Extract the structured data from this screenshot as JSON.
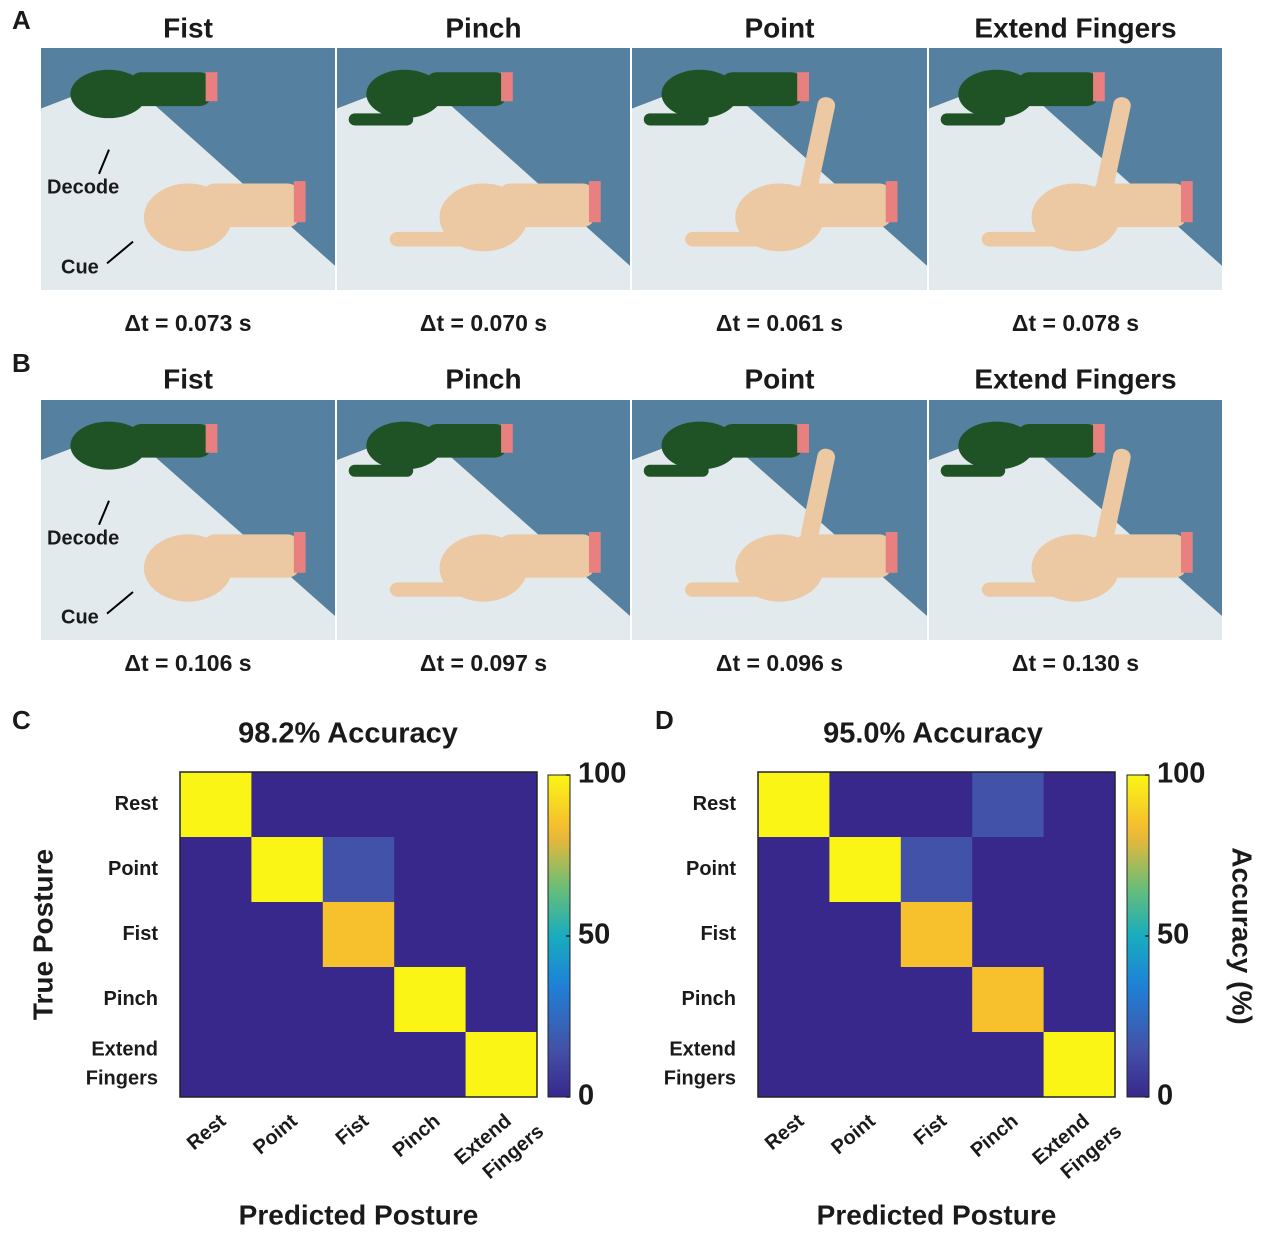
{
  "panels": [
    {
      "label": "A",
      "annotations": {
        "decode": "Decode",
        "cue": "Cue"
      },
      "items": [
        {
          "title": "Fist",
          "delta": "Δt = 0.073 s"
        },
        {
          "title": "Pinch",
          "delta": "Δt = 0.070 s"
        },
        {
          "title": "Point",
          "delta": "Δt = 0.061 s"
        },
        {
          "title": "Extend Fingers",
          "delta": "Δt = 0.078 s"
        }
      ]
    },
    {
      "label": "B",
      "annotations": {
        "decode": "Decode",
        "cue": "Cue"
      },
      "items": [
        {
          "title": "Fist",
          "delta": "Δt = 0.106 s"
        },
        {
          "title": "Pinch",
          "delta": "Δt = 0.097 s"
        },
        {
          "title": "Point",
          "delta": "Δt = 0.096 s"
        },
        {
          "title": "Extend Fingers",
          "delta": "Δt = 0.130 s"
        }
      ]
    }
  ],
  "chart_data": [
    {
      "type": "heatmap",
      "label": "C",
      "title": "98.2% Accuracy",
      "categories": [
        "Rest",
        "Point",
        "Fist",
        "Pinch",
        "Extend Fingers"
      ],
      "values": [
        [
          100,
          0,
          0,
          0,
          0
        ],
        [
          0,
          100,
          15,
          0,
          0
        ],
        [
          0,
          0,
          85,
          0,
          0
        ],
        [
          0,
          0,
          0,
          100,
          0
        ],
        [
          0,
          0,
          0,
          0,
          100
        ]
      ],
      "xlabel": "Predicted Posture",
      "ylabel": "True Posture",
      "zlim": [
        0,
        100
      ],
      "zticks": [
        0,
        50,
        100
      ]
    },
    {
      "type": "heatmap",
      "label": "D",
      "title": "95.0% Accuracy",
      "categories": [
        "Rest",
        "Point",
        "Fist",
        "Pinch",
        "Extend Fingers"
      ],
      "values": [
        [
          100,
          0,
          0,
          15,
          0
        ],
        [
          0,
          100,
          15,
          0,
          0
        ],
        [
          0,
          0,
          85,
          0,
          0
        ],
        [
          0,
          0,
          0,
          85,
          0
        ],
        [
          0,
          0,
          0,
          0,
          100
        ]
      ],
      "xlabel": "Predicted Posture",
      "colorbar_label": "Accuracy (%)",
      "zlim": [
        0,
        100
      ],
      "zticks": [
        0,
        50,
        100
      ]
    }
  ]
}
